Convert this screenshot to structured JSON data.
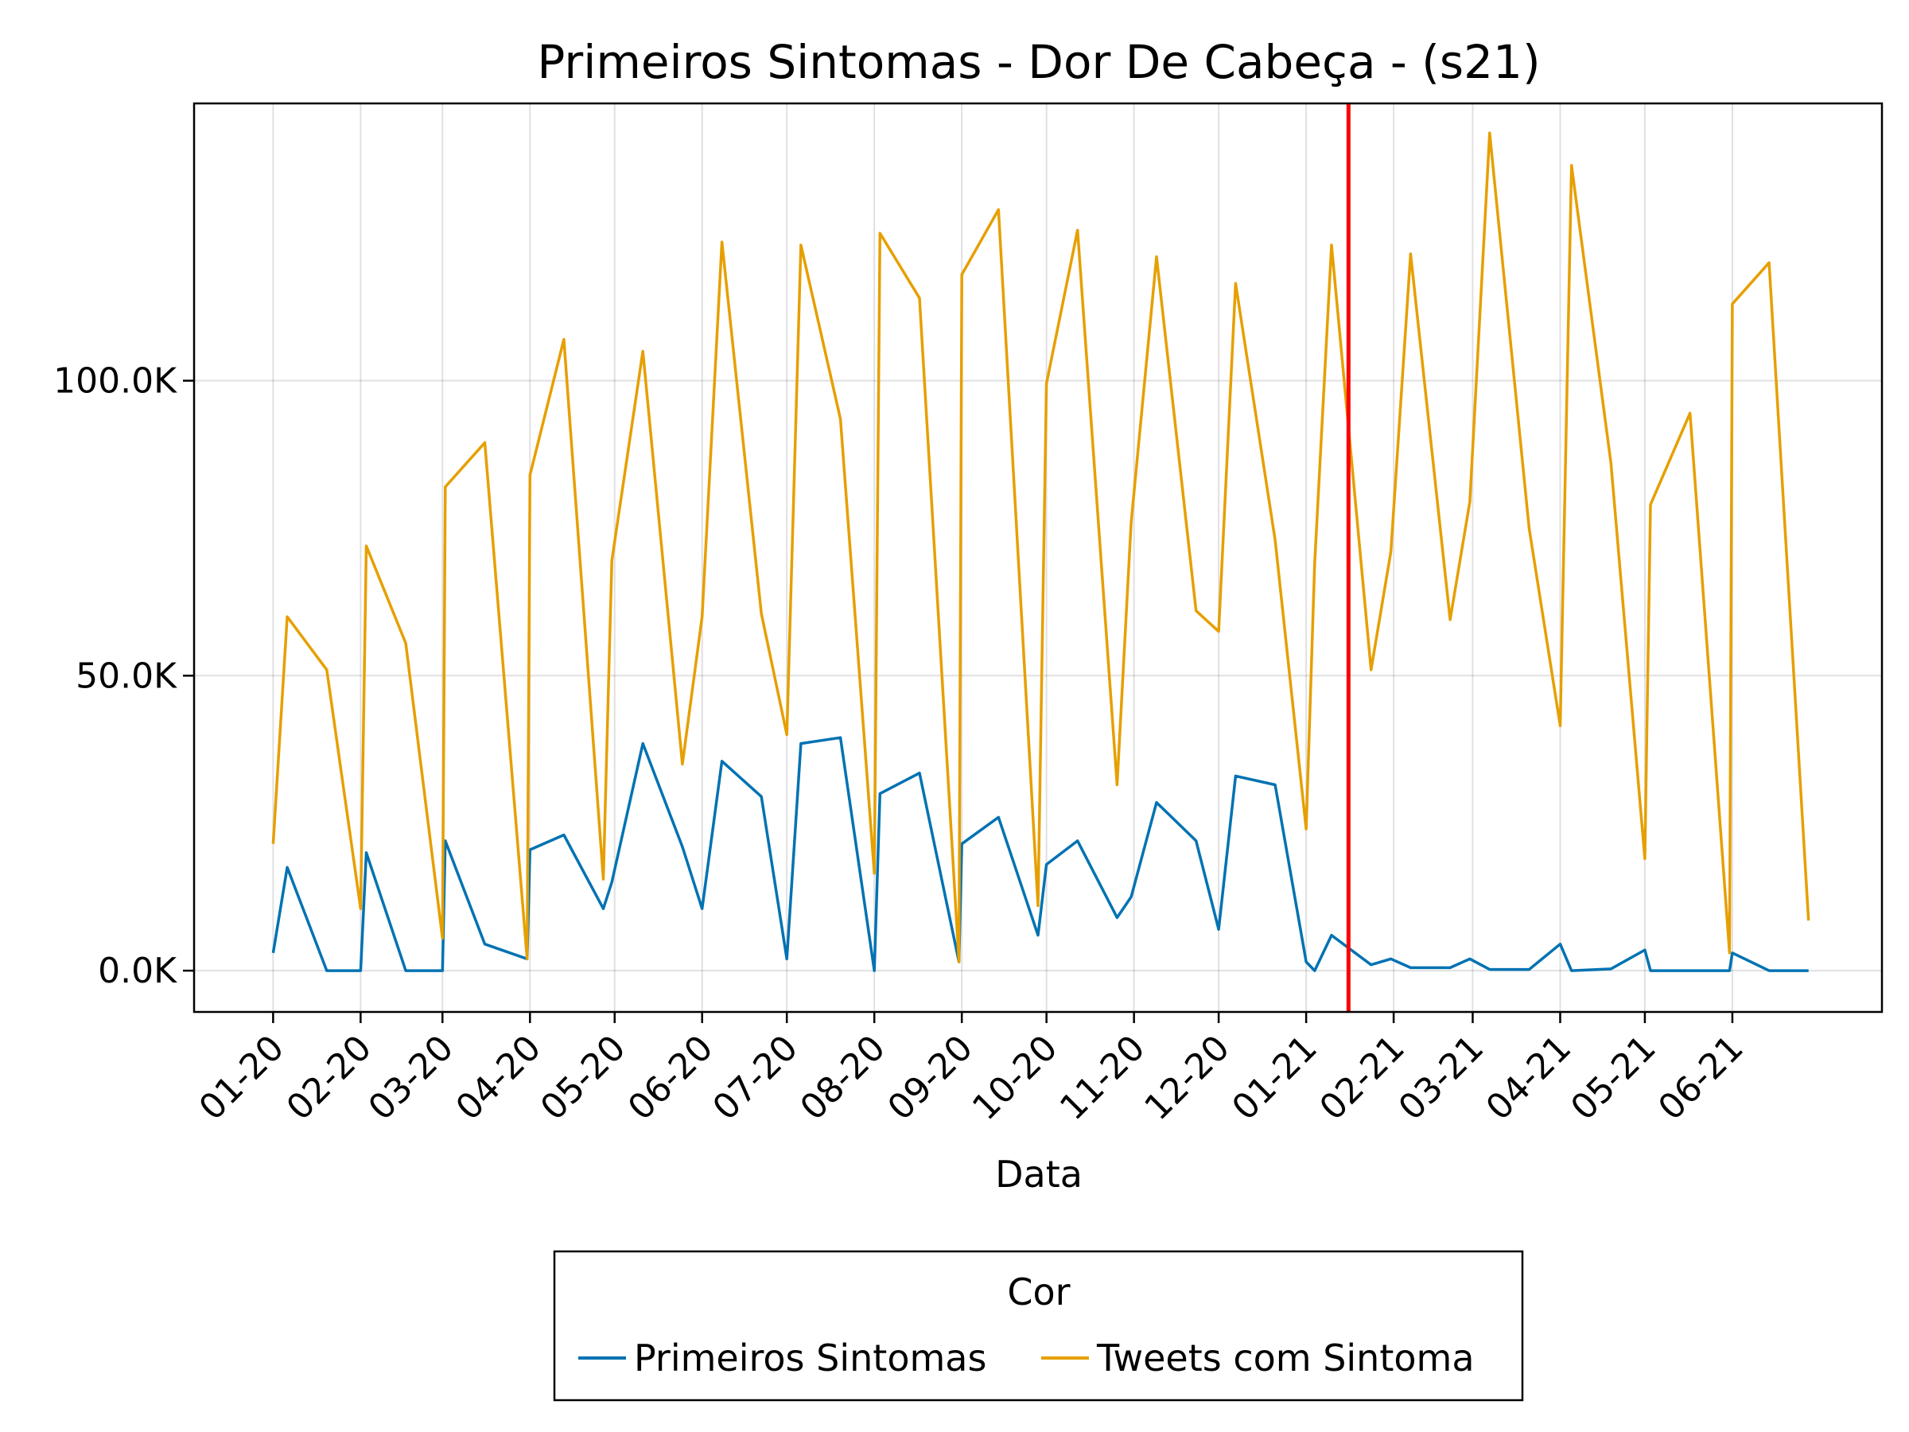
{
  "chart_data": {
    "type": "line",
    "title": "Primeiros Sintomas - Dor De Cabeça - (s21)",
    "xlabel": "Data",
    "ylabel": "",
    "x_tick_labels": [
      "01-20",
      "02-20",
      "03-20",
      "04-20",
      "05-20",
      "06-20",
      "07-20",
      "08-20",
      "09-20",
      "10-20",
      "11-20",
      "12-20",
      "01-21",
      "02-21",
      "03-21",
      "04-21",
      "05-21",
      "06-21"
    ],
    "y_tick_labels": [
      "0.0K",
      "50.0K",
      "100.0K"
    ],
    "y_tick_values": [
      0,
      50000,
      100000
    ],
    "ylim": [
      -7000,
      147000
    ],
    "xlim": [
      "2019-12-04",
      "2021-07-24"
    ],
    "grid": true,
    "vertical_marker": {
      "x": "2021-01-16",
      "color": "#ff0000"
    },
    "legend": {
      "title": "Cor",
      "placement": "bottom-center"
    },
    "series": [
      {
        "name": "Primeiros Sintomas",
        "color": "#0072b2",
        "points": [
          [
            "2020-01-01",
            3000
          ],
          [
            "2020-01-06",
            17500
          ],
          [
            "2020-01-20",
            0
          ],
          [
            "2020-02-01",
            0
          ],
          [
            "2020-02-03",
            20000
          ],
          [
            "2020-02-17",
            0
          ],
          [
            "2020-03-01",
            0
          ],
          [
            "2020-03-02",
            22000
          ],
          [
            "2020-03-16",
            4500
          ],
          [
            "2020-03-31",
            2000
          ],
          [
            "2020-04-01",
            20500
          ],
          [
            "2020-04-13",
            23000
          ],
          [
            "2020-04-27",
            10500
          ],
          [
            "2020-04-30",
            15000
          ],
          [
            "2020-05-11",
            38500
          ],
          [
            "2020-05-25",
            21000
          ],
          [
            "2020-06-01",
            10500
          ],
          [
            "2020-06-08",
            35500
          ],
          [
            "2020-06-22",
            29500
          ],
          [
            "2020-07-01",
            2000
          ],
          [
            "2020-07-06",
            38500
          ],
          [
            "2020-07-20",
            39500
          ],
          [
            "2020-08-01",
            0
          ],
          [
            "2020-08-03",
            30000
          ],
          [
            "2020-08-17",
            33500
          ],
          [
            "2020-08-31",
            1500
          ],
          [
            "2020-09-01",
            21500
          ],
          [
            "2020-09-14",
            26000
          ],
          [
            "2020-09-28",
            6000
          ],
          [
            "2020-10-01",
            18000
          ],
          [
            "2020-10-12",
            22000
          ],
          [
            "2020-10-26",
            9000
          ],
          [
            "2020-10-31",
            12500
          ],
          [
            "2020-11-09",
            28500
          ],
          [
            "2020-11-23",
            22000
          ],
          [
            "2020-12-01",
            7000
          ],
          [
            "2020-12-07",
            33000
          ],
          [
            "2020-12-21",
            31500
          ],
          [
            "2021-01-01",
            1500
          ],
          [
            "2021-01-04",
            0
          ],
          [
            "2021-01-10",
            6000
          ],
          [
            "2021-01-24",
            1000
          ],
          [
            "2021-01-31",
            2000
          ],
          [
            "2021-02-07",
            500
          ],
          [
            "2021-02-21",
            500
          ],
          [
            "2021-02-28",
            2000
          ],
          [
            "2021-03-07",
            200
          ],
          [
            "2021-03-21",
            200
          ],
          [
            "2021-04-01",
            4500
          ],
          [
            "2021-04-05",
            0
          ],
          [
            "2021-04-19",
            300
          ],
          [
            "2021-05-01",
            3500
          ],
          [
            "2021-05-03",
            0
          ],
          [
            "2021-05-17",
            0
          ],
          [
            "2021-05-31",
            0
          ],
          [
            "2021-06-01",
            3000
          ],
          [
            "2021-06-14",
            0
          ],
          [
            "2021-06-28",
            0
          ]
        ]
      },
      {
        "name": "Tweets com Sintoma",
        "color": "#e69f00",
        "points": [
          [
            "2020-01-01",
            21500
          ],
          [
            "2020-01-06",
            60000
          ],
          [
            "2020-01-20",
            51000
          ],
          [
            "2020-02-01",
            10500
          ],
          [
            "2020-02-03",
            72000
          ],
          [
            "2020-02-17",
            55500
          ],
          [
            "2020-03-01",
            5500
          ],
          [
            "2020-03-02",
            82000
          ],
          [
            "2020-03-16",
            89500
          ],
          [
            "2020-03-31",
            2000
          ],
          [
            "2020-04-01",
            84000
          ],
          [
            "2020-04-13",
            107000
          ],
          [
            "2020-04-27",
            15500
          ],
          [
            "2020-04-30",
            69500
          ],
          [
            "2020-05-11",
            105000
          ],
          [
            "2020-05-25",
            35000
          ],
          [
            "2020-06-01",
            60000
          ],
          [
            "2020-06-08",
            123500
          ],
          [
            "2020-06-22",
            60500
          ],
          [
            "2020-07-01",
            40000
          ],
          [
            "2020-07-06",
            123000
          ],
          [
            "2020-07-20",
            93500
          ],
          [
            "2020-08-01",
            16500
          ],
          [
            "2020-08-03",
            125000
          ],
          [
            "2020-08-17",
            114000
          ],
          [
            "2020-08-31",
            1500
          ],
          [
            "2020-09-01",
            118000
          ],
          [
            "2020-09-14",
            129000
          ],
          [
            "2020-09-28",
            11000
          ],
          [
            "2020-10-01",
            99500
          ],
          [
            "2020-10-12",
            125500
          ],
          [
            "2020-10-26",
            31500
          ],
          [
            "2020-10-31",
            76000
          ],
          [
            "2020-11-09",
            121000
          ],
          [
            "2020-11-23",
            61000
          ],
          [
            "2020-12-01",
            57500
          ],
          [
            "2020-12-07",
            116500
          ],
          [
            "2020-12-21",
            73000
          ],
          [
            "2021-01-01",
            24000
          ],
          [
            "2021-01-04",
            69000
          ],
          [
            "2021-01-10",
            123000
          ],
          [
            "2021-01-24",
            51000
          ],
          [
            "2021-01-31",
            71000
          ],
          [
            "2021-02-07",
            121500
          ],
          [
            "2021-02-21",
            59500
          ],
          [
            "2021-02-28",
            79500
          ],
          [
            "2021-03-07",
            142000
          ],
          [
            "2021-03-21",
            75000
          ],
          [
            "2021-04-01",
            41500
          ],
          [
            "2021-04-05",
            136500
          ],
          [
            "2021-04-19",
            86000
          ],
          [
            "2021-05-01",
            19000
          ],
          [
            "2021-05-03",
            79000
          ],
          [
            "2021-05-17",
            94500
          ],
          [
            "2021-05-31",
            3000
          ],
          [
            "2021-06-01",
            113000
          ],
          [
            "2021-06-14",
            120000
          ],
          [
            "2021-06-28",
            8500
          ]
        ]
      }
    ]
  }
}
